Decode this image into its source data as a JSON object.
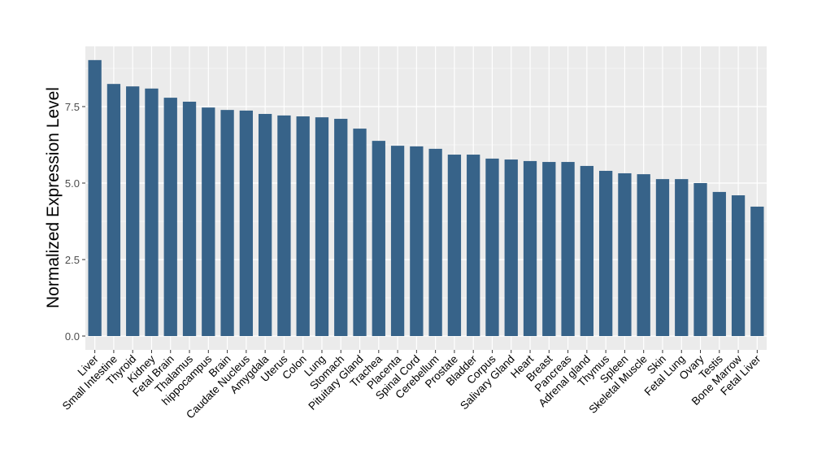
{
  "chart_data": {
    "type": "bar",
    "title": "",
    "xlabel": "",
    "ylabel": "Normalized Expression Level",
    "ylim": [
      -0.35,
      9.9
    ],
    "yticks": [
      0.0,
      2.5,
      5.0,
      7.5
    ],
    "ytick_labels": [
      "0.0",
      "2.5",
      "5.0",
      "7.5"
    ],
    "grid": true,
    "bar_color": "#376389",
    "panel_color": "#EBEBEB",
    "categories": [
      "Liver",
      "Small Intestine",
      "Thyroid",
      "Kidney",
      "Fetal Brain",
      "Thalamus",
      "hippocampus",
      "Brain",
      "Caudate Nucleus",
      "Amygdala",
      "Uterus",
      "Colon",
      "Lung",
      "Stomach",
      "Pituitary Gland",
      "Trachea",
      "Placenta",
      "Spinal Cord",
      "Cerebellum",
      "Prostate",
      "Bladder",
      "Corpus",
      "Salivary Gland",
      "Heart",
      "Breast",
      "Pancreas",
      "Adrenal gland",
      "Thymus",
      "Spleen",
      "Skeletal Muscle",
      "Skin",
      "Fetal Lung",
      "Ovary",
      "Testis",
      "Bone Marrow",
      "Fetal Liver"
    ],
    "values": [
      9.02,
      8.24,
      8.16,
      8.09,
      7.79,
      7.66,
      7.47,
      7.39,
      7.37,
      7.26,
      7.21,
      7.18,
      7.15,
      7.1,
      6.78,
      6.38,
      6.22,
      6.2,
      6.12,
      5.93,
      5.93,
      5.8,
      5.77,
      5.72,
      5.69,
      5.69,
      5.56,
      5.4,
      5.32,
      5.29,
      5.13,
      5.13,
      5.0,
      4.71,
      4.6,
      4.23
    ]
  }
}
